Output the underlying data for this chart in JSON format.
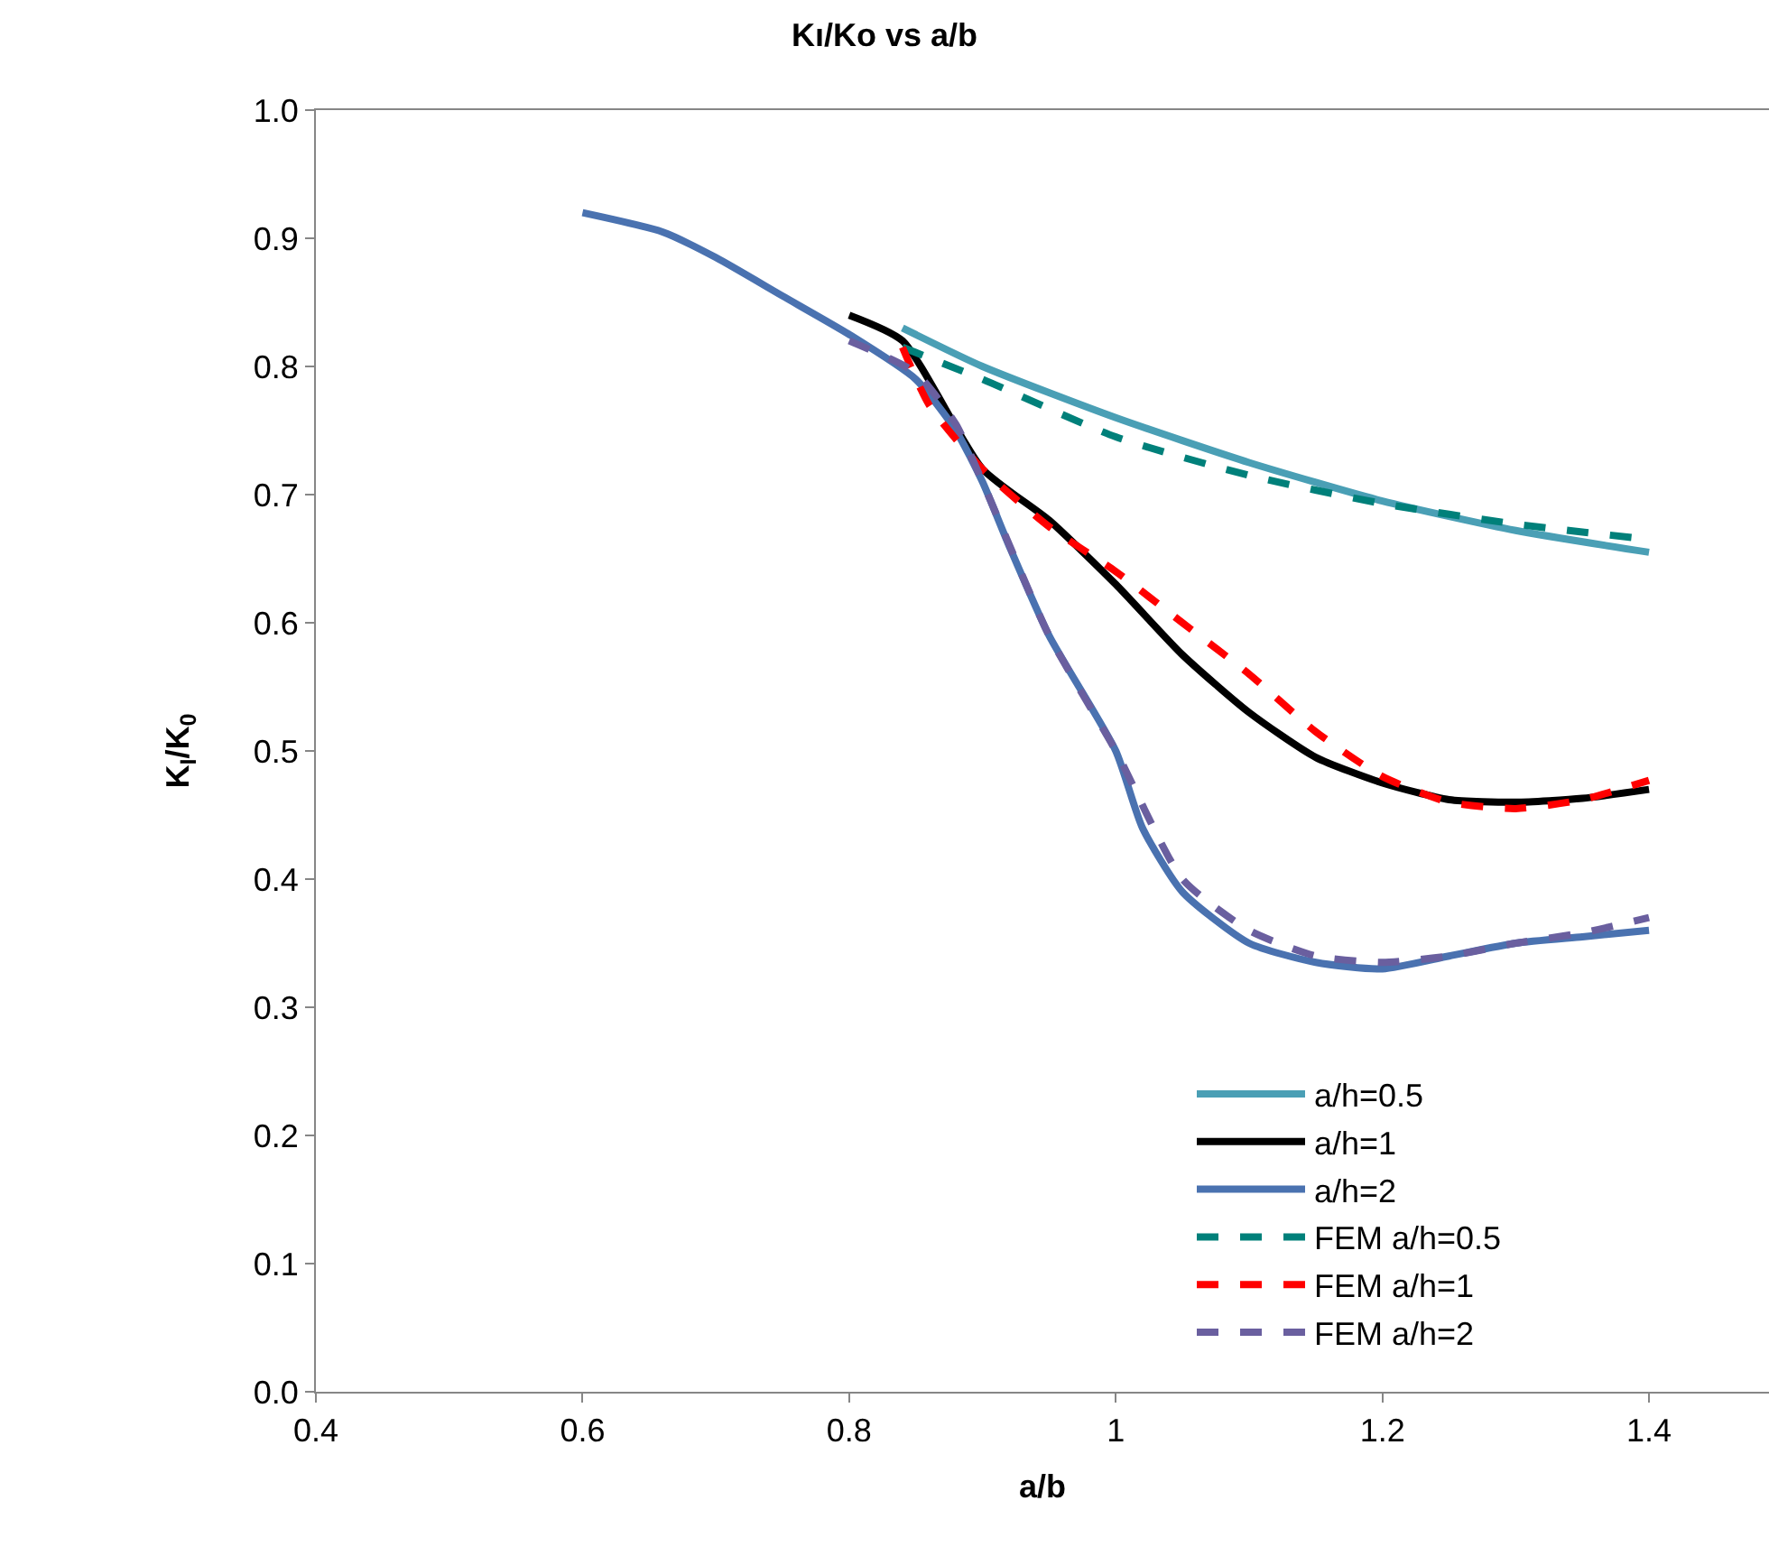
{
  "chart_data": {
    "type": "line",
    "title": "Kı/Ko vs a/b",
    "xlabel": "a/b",
    "ylabel": "K$_{I}$/K$_{0}$",
    "xlim": [
      0.4,
      1.49
    ],
    "xticks": [
      0.4,
      0.6,
      0.8,
      1,
      1.2,
      1.4
    ],
    "ylim": [
      0,
      1
    ],
    "yticks": [
      {
        "value": 0,
        "label": "0.0"
      },
      0.1,
      0.2,
      0.3,
      0.4,
      0.5,
      0.6,
      0.7,
      0.8,
      0.9,
      {
        "value": 1,
        "label": "1.0"
      }
    ],
    "legend": "bottom right",
    "marker": "none",
    "series": [
      {
        "name": "a/h=0.5",
        "color": "#4a9fb5",
        "line_style": "solid",
        "x": [
          0.84,
          0.9,
          1.0,
          1.1,
          1.2,
          1.3,
          1.4
        ],
        "values": [
          0.83,
          0.8,
          0.76,
          0.725,
          0.695,
          0.672,
          0.655
        ]
      },
      {
        "name": "a/h=1",
        "color": "#000000",
        "line_style": "solid",
        "x": [
          0.8,
          0.84,
          0.9,
          0.95,
          1.0,
          1.05,
          1.1,
          1.15,
          1.2,
          1.25,
          1.3,
          1.35,
          1.4
        ],
        "values": [
          0.84,
          0.82,
          0.72,
          0.68,
          0.63,
          0.575,
          0.53,
          0.495,
          0.475,
          0.462,
          0.46,
          0.463,
          0.47
        ]
      },
      {
        "name": "a/h=2",
        "color": "#4a72b0",
        "line_style": "solid",
        "x": [
          0.6,
          0.66,
          0.7,
          0.75,
          0.8,
          0.85,
          0.88,
          0.9,
          0.92,
          0.95,
          1.0,
          1.02,
          1.05,
          1.1,
          1.15,
          1.2,
          1.25,
          1.3,
          1.35,
          1.4
        ],
        "values": [
          0.92,
          0.905,
          0.885,
          0.855,
          0.825,
          0.79,
          0.75,
          0.71,
          0.66,
          0.59,
          0.5,
          0.44,
          0.39,
          0.35,
          0.335,
          0.33,
          0.34,
          0.35,
          0.355,
          0.36
        ]
      },
      {
        "name": "FEM a/h=0.5",
        "color": "#00807a",
        "line_style": "dashed",
        "x": [
          0.84,
          0.9,
          1.0,
          1.1,
          1.2,
          1.3,
          1.4
        ],
        "values": [
          0.815,
          0.79,
          0.745,
          0.715,
          0.693,
          0.677,
          0.665
        ]
      },
      {
        "name": "FEM a/h=1",
        "color": "#ff0000",
        "line_style": "dashed",
        "x": [
          0.84,
          0.86,
          0.9,
          0.95,
          1.0,
          1.05,
          1.1,
          1.15,
          1.2,
          1.25,
          1.3,
          1.35,
          1.4
        ],
        "values": [
          0.815,
          0.77,
          0.72,
          0.675,
          0.64,
          0.6,
          0.56,
          0.515,
          0.48,
          0.46,
          0.455,
          0.462,
          0.477
        ]
      },
      {
        "name": "FEM a/h=2",
        "color": "#6a5f9f",
        "line_style": "dashed",
        "x": [
          0.8,
          0.85,
          0.88,
          0.9,
          0.95,
          1.0,
          1.05,
          1.1,
          1.15,
          1.2,
          1.25,
          1.3,
          1.35,
          1.4
        ],
        "values": [
          0.82,
          0.795,
          0.755,
          0.71,
          0.59,
          0.5,
          0.4,
          0.36,
          0.34,
          0.335,
          0.34,
          0.35,
          0.358,
          0.37
        ]
      }
    ]
  }
}
